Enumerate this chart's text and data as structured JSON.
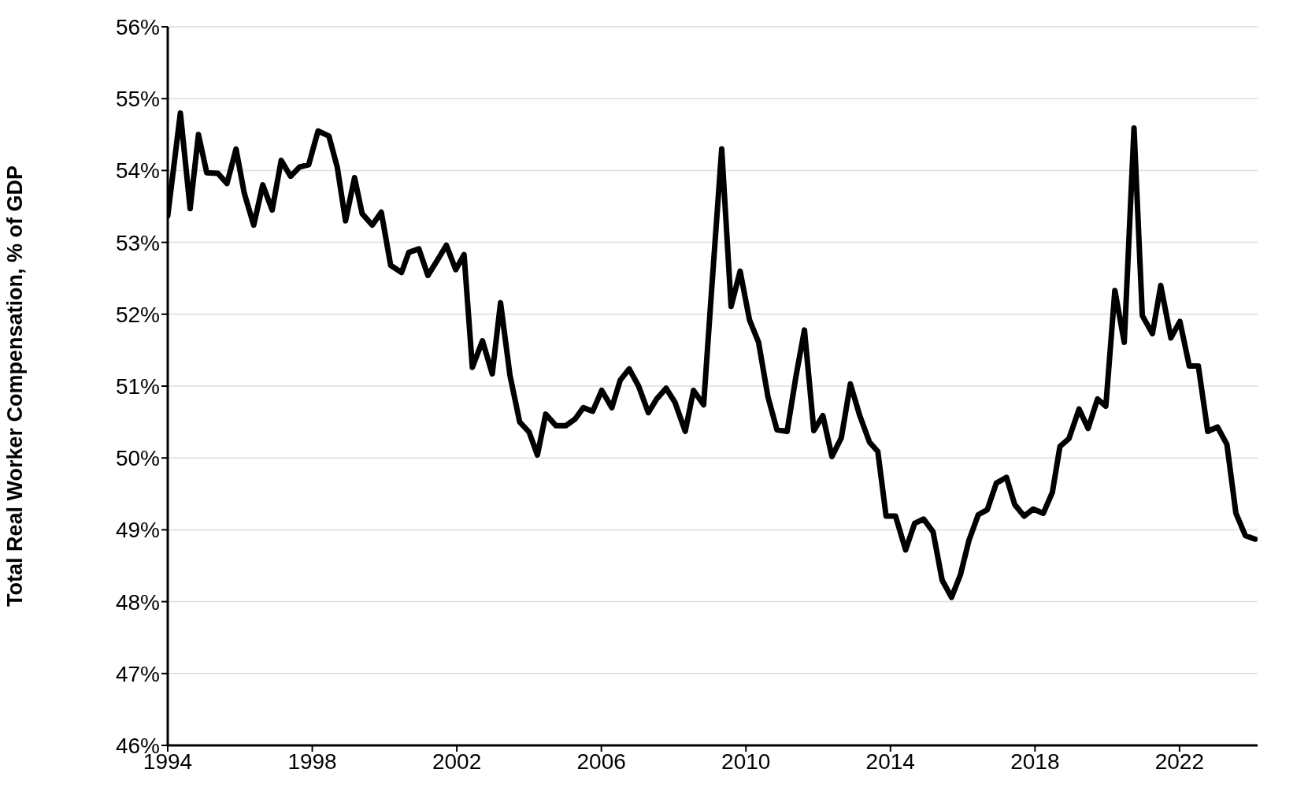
{
  "chart_data": {
    "type": "line",
    "ylabel": "Total Real Worker Compensation, % of GDP",
    "x": [
      1994.0,
      1994.35,
      1994.62,
      1994.85,
      1995.08,
      1995.39,
      1995.64,
      1995.89,
      1996.12,
      1996.38,
      1996.63,
      1996.89,
      1997.14,
      1997.4,
      1997.65,
      1997.9,
      1998.16,
      1998.46,
      1998.69,
      1998.92,
      1999.17,
      1999.38,
      1999.66,
      1999.91,
      2000.17,
      2000.47,
      2000.67,
      2000.95,
      2001.2,
      2001.46,
      2001.71,
      2001.97,
      2002.2,
      2002.43,
      2002.71,
      2002.98,
      2003.21,
      2003.47,
      2003.74,
      2004.0,
      2004.23,
      2004.46,
      2004.74,
      2005.02,
      2005.27,
      2005.5,
      2005.76,
      2006.01,
      2006.29,
      2006.52,
      2006.77,
      2007.03,
      2007.3,
      2007.53,
      2007.79,
      2008.04,
      2008.32,
      2008.55,
      2008.83,
      2009.03,
      2009.33,
      2009.59,
      2009.84,
      2010.1,
      2010.35,
      2010.61,
      2010.86,
      2011.14,
      2011.39,
      2011.62,
      2011.88,
      2012.13,
      2012.38,
      2012.64,
      2012.89,
      2013.15,
      2013.42,
      2013.65,
      2013.88,
      2014.14,
      2014.42,
      2014.67,
      2014.92,
      2015.18,
      2015.43,
      2015.69,
      2015.94,
      2016.17,
      2016.43,
      2016.68,
      2016.93,
      2017.21,
      2017.44,
      2017.7,
      2017.95,
      2018.23,
      2018.48,
      2018.69,
      2018.94,
      2019.22,
      2019.47,
      2019.73,
      2019.96,
      2020.21,
      2020.47,
      2020.74,
      2020.97,
      2021.25,
      2021.48,
      2021.76,
      2022.01,
      2022.27,
      2022.52,
      2022.78,
      2023.05,
      2023.31,
      2023.56,
      2023.82,
      2024.09
    ],
    "values": [
      53.37,
      54.8,
      53.47,
      54.5,
      53.97,
      53.96,
      53.82,
      54.3,
      53.68,
      53.24,
      53.8,
      53.45,
      54.14,
      53.92,
      54.05,
      54.08,
      54.55,
      54.48,
      54.05,
      53.3,
      53.9,
      53.4,
      53.24,
      53.42,
      52.68,
      52.58,
      52.86,
      52.91,
      52.54,
      52.75,
      52.96,
      52.62,
      52.83,
      51.26,
      51.63,
      51.17,
      52.16,
      51.15,
      50.5,
      50.36,
      50.04,
      50.61,
      50.45,
      50.45,
      50.54,
      50.7,
      50.65,
      50.94,
      50.7,
      51.08,
      51.24,
      51.0,
      50.63,
      50.82,
      50.97,
      50.77,
      50.37,
      50.94,
      50.74,
      52.19,
      54.3,
      52.11,
      52.6,
      51.92,
      51.61,
      50.85,
      50.39,
      50.37,
      51.15,
      51.78,
      50.38,
      50.59,
      50.02,
      50.28,
      51.03,
      50.59,
      50.22,
      50.09,
      49.19,
      49.19,
      48.72,
      49.09,
      49.15,
      48.97,
      48.3,
      48.06,
      48.38,
      48.85,
      49.21,
      49.28,
      49.65,
      49.73,
      49.35,
      49.19,
      49.29,
      49.23,
      49.52,
      50.16,
      50.27,
      50.68,
      50.41,
      50.82,
      50.72,
      52.33,
      51.61,
      54.59,
      51.98,
      51.73,
      52.4,
      51.67,
      51.9,
      51.28,
      51.28,
      50.37,
      50.43,
      50.19,
      49.23,
      48.92,
      48.87
    ],
    "color": "#000000",
    "line_style": "solid",
    "grid": "y",
    "xlim": [
      1994,
      2024.16
    ],
    "xticks": [
      1994,
      1998,
      2002,
      2006,
      2010,
      2014,
      2018,
      2022
    ],
    "ylim": [
      46,
      56
    ],
    "yticks": [
      {
        "value": 46,
        "label": "46%"
      },
      {
        "value": 47,
        "label": "47%"
      },
      {
        "value": 48,
        "label": "48%"
      },
      {
        "value": 49,
        "label": "49%"
      },
      {
        "value": 50,
        "label": "50%"
      },
      {
        "value": 51,
        "label": "51%"
      },
      {
        "value": 52,
        "label": "52%"
      },
      {
        "value": 53,
        "label": "53%"
      },
      {
        "value": 54,
        "label": "54%"
      },
      {
        "value": 55,
        "label": "55%"
      },
      {
        "value": 56,
        "label": "56%"
      }
    ]
  }
}
